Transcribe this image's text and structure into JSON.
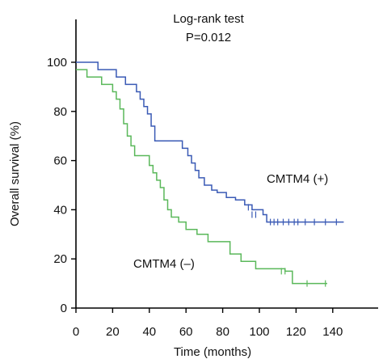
{
  "chart_data": {
    "type": "line",
    "title": "",
    "annotation": {
      "line1": "Log-rank test",
      "line2": "P=0.012"
    },
    "xlabel": "Time (months)",
    "ylabel": "Overall survival (%)",
    "xlim": [
      0,
      150
    ],
    "ylim": [
      0,
      100
    ],
    "x_ticks": [
      0,
      20,
      40,
      60,
      80,
      100,
      120,
      140
    ],
    "y_ticks": [
      0,
      20,
      40,
      60,
      80,
      100
    ],
    "grid": false,
    "series": [
      {
        "name": "CMTM4 (+)",
        "color": "#3a5ab5",
        "steps": [
          [
            0,
            100
          ],
          [
            10,
            100
          ],
          [
            12,
            97
          ],
          [
            20,
            97
          ],
          [
            22,
            94
          ],
          [
            25,
            94
          ],
          [
            27,
            91
          ],
          [
            31,
            91
          ],
          [
            33,
            88
          ],
          [
            35,
            85
          ],
          [
            37,
            82
          ],
          [
            39,
            79
          ],
          [
            41,
            74
          ],
          [
            43,
            68
          ],
          [
            56,
            68
          ],
          [
            58,
            65
          ],
          [
            61,
            62
          ],
          [
            63,
            59
          ],
          [
            65,
            56
          ],
          [
            67,
            53
          ],
          [
            70,
            50
          ],
          [
            74,
            48
          ],
          [
            77,
            47
          ],
          [
            82,
            45
          ],
          [
            87,
            44
          ],
          [
            92,
            42
          ],
          [
            96,
            40
          ],
          [
            102,
            38
          ],
          [
            104,
            35
          ],
          [
            146,
            35
          ]
        ],
        "censored": [
          [
            94,
            41
          ],
          [
            96,
            38
          ],
          [
            98,
            38
          ],
          [
            106,
            35
          ],
          [
            108,
            35
          ],
          [
            110,
            35
          ],
          [
            113,
            35
          ],
          [
            116,
            35
          ],
          [
            119,
            35
          ],
          [
            121,
            35
          ],
          [
            125,
            35
          ],
          [
            130,
            35
          ],
          [
            136,
            35
          ],
          [
            142,
            35
          ]
        ]
      },
      {
        "name": "CMTM4 (–)",
        "color": "#5ab85a",
        "steps": [
          [
            0,
            97
          ],
          [
            4,
            97
          ],
          [
            6,
            94
          ],
          [
            12,
            94
          ],
          [
            14,
            91
          ],
          [
            18,
            91
          ],
          [
            20,
            88
          ],
          [
            22,
            85
          ],
          [
            24,
            81
          ],
          [
            26,
            75
          ],
          [
            28,
            70
          ],
          [
            30,
            66
          ],
          [
            32,
            62
          ],
          [
            38,
            62
          ],
          [
            40,
            58
          ],
          [
            42,
            55
          ],
          [
            44,
            52
          ],
          [
            46,
            49
          ],
          [
            48,
            44
          ],
          [
            50,
            40
          ],
          [
            52,
            37
          ],
          [
            56,
            35
          ],
          [
            60,
            32
          ],
          [
            64,
            32
          ],
          [
            66,
            30
          ],
          [
            70,
            30
          ],
          [
            72,
            27
          ],
          [
            82,
            27
          ],
          [
            84,
            22
          ],
          [
            88,
            22
          ],
          [
            90,
            19
          ],
          [
            96,
            19
          ],
          [
            98,
            16
          ],
          [
            112,
            16
          ],
          [
            114,
            15
          ],
          [
            116,
            15
          ],
          [
            118,
            10
          ],
          [
            137,
            10
          ]
        ],
        "censored": [
          [
            112,
            15
          ],
          [
            114,
            15
          ],
          [
            126,
            10
          ],
          [
            136,
            10
          ]
        ]
      }
    ]
  }
}
